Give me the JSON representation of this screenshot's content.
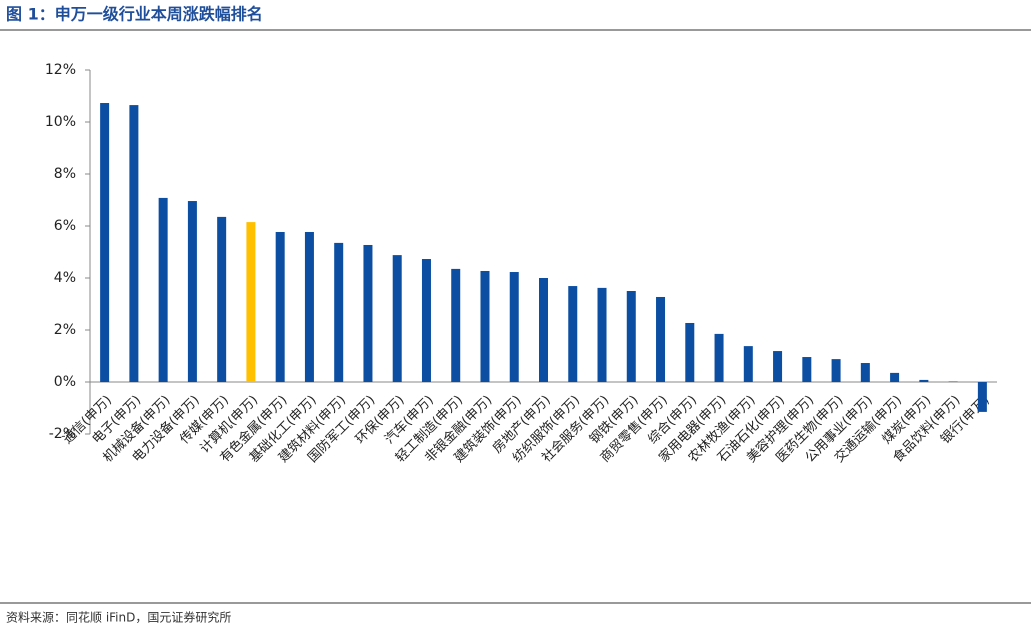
{
  "chart_data": {
    "type": "bar",
    "title": "图 1：申万一级行业本周涨跌幅排名",
    "source": "资料来源：同花顺 iFinD，国元证券研究所",
    "categories": [
      "通信(申万)",
      "电子(申万)",
      "机械设备(申万)",
      "电力设备(申万)",
      "传媒(申万)",
      "计算机(申万)",
      "有色金属(申万)",
      "基础化工(申万)",
      "建筑材料(申万)",
      "国防军工(申万)",
      "环保(申万)",
      "汽车(申万)",
      "轻工制造(申万)",
      "非银金融(申万)",
      "建筑装饰(申万)",
      "房地产(申万)",
      "纺织服饰(申万)",
      "社会服务(申万)",
      "钢铁(申万)",
      "商贸零售(申万)",
      "综合(申万)",
      "家用电器(申万)",
      "农林牧渔(申万)",
      "石油石化(申万)",
      "美容护理(申万)",
      "医药生物(申万)",
      "公用事业(申万)",
      "交通运输(申万)",
      "煤炭(申万)",
      "食品饮料(申万)",
      "银行(申万)"
    ],
    "values": [
      10.73,
      10.65,
      7.08,
      6.96,
      6.35,
      6.15,
      5.77,
      5.77,
      5.35,
      5.27,
      4.88,
      4.73,
      4.35,
      4.27,
      4.23,
      4.0,
      3.69,
      3.62,
      3.5,
      3.27,
      2.27,
      1.85,
      1.38,
      1.19,
      0.96,
      0.88,
      0.73,
      0.35,
      0.08,
      0.02,
      -1.15
    ],
    "colors": [
      "#0b4ea2",
      "#0b4ea2",
      "#0b4ea2",
      "#0b4ea2",
      "#0b4ea2",
      "#ffc000",
      "#0b4ea2",
      "#0b4ea2",
      "#0b4ea2",
      "#0b4ea2",
      "#0b4ea2",
      "#0b4ea2",
      "#0b4ea2",
      "#0b4ea2",
      "#0b4ea2",
      "#0b4ea2",
      "#0b4ea2",
      "#0b4ea2",
      "#0b4ea2",
      "#0b4ea2",
      "#0b4ea2",
      "#0b4ea2",
      "#0b4ea2",
      "#0b4ea2",
      "#0b4ea2",
      "#0b4ea2",
      "#0b4ea2",
      "#0b4ea2",
      "#0b4ea2",
      "#0b4ea2",
      "#0b4ea2"
    ],
    "ylim": [
      -2,
      12
    ],
    "yticks": [
      {
        "value": -2,
        "label": "-2%"
      },
      {
        "value": 0,
        "label": "0%"
      },
      {
        "value": 2,
        "label": "2%"
      },
      {
        "value": 4,
        "label": "4%"
      },
      {
        "value": 6,
        "label": "6%"
      },
      {
        "value": 8,
        "label": "8%"
      },
      {
        "value": 10,
        "label": "10%"
      },
      {
        "value": 12,
        "label": "12%"
      }
    ],
    "grid": false
  }
}
